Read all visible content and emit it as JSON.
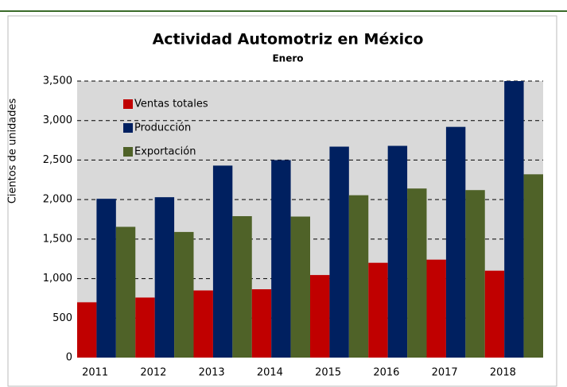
{
  "chart_data": {
    "type": "bar",
    "title": "Actividad Automotriz en México",
    "subtitle": "Enero",
    "y_label": "Cientos de unidades",
    "categories": [
      "2011",
      "2012",
      "2013",
      "2014",
      "2015",
      "2016",
      "2017",
      "2018"
    ],
    "series": [
      {
        "name": "Ventas totales",
        "color": "#c00000",
        "values": [
          700,
          760,
          850,
          865,
          1045,
          1200,
          1240,
          1100
        ]
      },
      {
        "name": "Producción",
        "color": "#002060",
        "values": [
          2010,
          2030,
          2430,
          2500,
          2670,
          2680,
          2920,
          3500
        ]
      },
      {
        "name": "Exportación",
        "color": "#4f6228",
        "values": [
          1655,
          1590,
          1790,
          1785,
          2055,
          2140,
          2120,
          2320
        ]
      }
    ],
    "ylim": [
      0,
      3500
    ],
    "yticks": [
      0,
      {
        "value": 500,
        "label": "500"
      },
      {
        "value": 1000,
        "label": "1,000"
      },
      {
        "value": 1500,
        "label": "1,500"
      },
      {
        "value": 2000,
        "label": "2,000"
      },
      {
        "value": 2500,
        "label": "2,500"
      },
      {
        "value": 3000,
        "label": "3,000"
      },
      {
        "value": 3500,
        "label": "3,500"
      }
    ],
    "grid": true,
    "legend": "upper left"
  }
}
